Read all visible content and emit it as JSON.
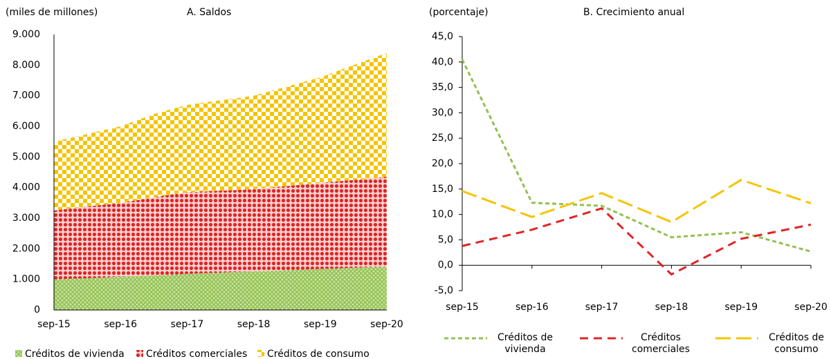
{
  "chart_data": [
    {
      "type": "stacked_area",
      "title": "A. Saldos",
      "ylabel": "(miles de millones)",
      "categories": [
        "sep-15",
        null,
        null,
        null,
        "sep-16",
        null,
        null,
        null,
        "sep-17",
        null,
        null,
        null,
        "sep-18",
        null,
        null,
        null,
        "sep-19",
        null,
        null,
        null,
        "sep-20"
      ],
      "series": [
        {
          "name": "Créditos de vivienda",
          "color": "#92c050",
          "pattern": "cross",
          "values": [
            1000,
            1020,
            1040,
            1060,
            1090,
            1110,
            1130,
            1150,
            1180,
            1200,
            1220,
            1240,
            1260,
            1280,
            1300,
            1320,
            1340,
            1360,
            1380,
            1400,
            1420
          ]
        },
        {
          "name": "Créditos comerciales",
          "color": "#e02424",
          "pattern": "dots",
          "values": [
            2250,
            2300,
            2340,
            2380,
            2410,
            2480,
            2550,
            2620,
            2670,
            2670,
            2680,
            2680,
            2690,
            2720,
            2750,
            2780,
            2810,
            2840,
            2870,
            2900,
            2930
          ]
        },
        {
          "name": "Créditos de consumo",
          "color": "#f5c400",
          "pattern": "checker",
          "values": [
            2250,
            2300,
            2370,
            2440,
            2500,
            2610,
            2720,
            2780,
            2850,
            2910,
            2950,
            3000,
            3050,
            3150,
            3250,
            3350,
            3450,
            3600,
            3750,
            3900,
            4050
          ]
        }
      ],
      "ylim": [
        0,
        9000
      ],
      "yticks": [
        0,
        {
          "value": 1000,
          "label": "1.000"
        },
        {
          "value": 2000,
          "label": "2.000"
        },
        {
          "value": 3000,
          "label": "3.000"
        },
        {
          "value": 4000,
          "label": "4.000"
        },
        {
          "value": 5000,
          "label": "5.000"
        },
        {
          "value": 6000,
          "label": "6.000"
        },
        {
          "value": 7000,
          "label": "7.000"
        },
        {
          "value": 8000,
          "label": "8.000"
        },
        {
          "value": 9000,
          "label": "9.000"
        }
      ]
    },
    {
      "type": "line",
      "title": "B. Crecimiento anual",
      "ylabel": "(porcentaje)",
      "categories": [
        "sep-15",
        "sep-16",
        "sep-17",
        "sep-18",
        "sep-19",
        "sep-20"
      ],
      "series": [
        {
          "name": "Créditos de vivienda",
          "color": "#92c050",
          "dash": [
            6,
            4
          ],
          "values": [
            40.5,
            12.3,
            11.7,
            5.5,
            6.5,
            2.7
          ]
        },
        {
          "name": "Créditos comerciales",
          "color": "#e02424",
          "dash": [
            12,
            8
          ],
          "values": [
            3.8,
            7.0,
            11.2,
            -1.8,
            5.2,
            8.0
          ]
        },
        {
          "name": "Créditos de consumo",
          "color": "#f5c400",
          "dash": [
            22,
            8
          ],
          "values": [
            14.6,
            9.5,
            14.2,
            8.5,
            16.8,
            12.2
          ]
        }
      ],
      "ylim": [
        -5,
        45
      ],
      "yticks": [
        {
          "value": -5,
          "label": "-5,0"
        },
        {
          "value": 0,
          "label": "0,0"
        },
        {
          "value": 5,
          "label": "5,0"
        },
        {
          "value": 10,
          "label": "10,0"
        },
        {
          "value": 15,
          "label": "15,0"
        },
        {
          "value": 20,
          "label": "20,0"
        },
        {
          "value": 25,
          "label": "25,0"
        },
        {
          "value": 30,
          "label": "30,0"
        },
        {
          "value": 35,
          "label": "35,0"
        },
        {
          "value": 40,
          "label": "40,0"
        },
        {
          "value": 45,
          "label": "45,0"
        }
      ]
    }
  ]
}
